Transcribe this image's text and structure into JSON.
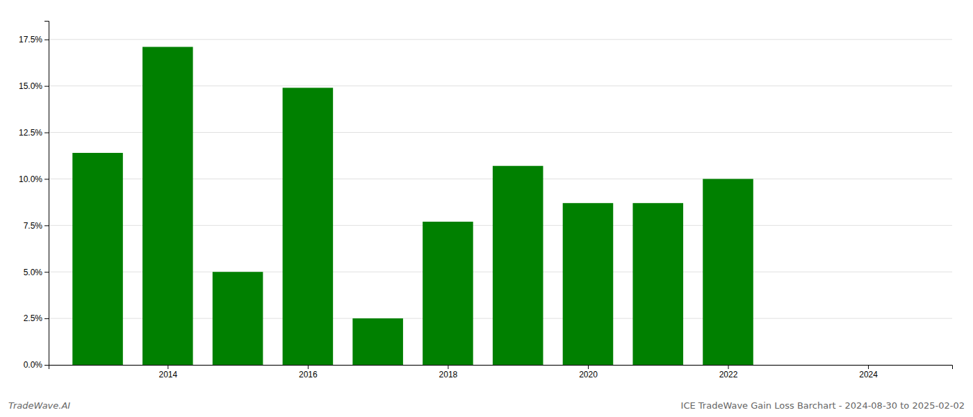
{
  "chart_data": {
    "type": "bar",
    "x": [
      2013,
      2014,
      2015,
      2016,
      2017,
      2018,
      2019,
      2020,
      2021,
      2022
    ],
    "values": [
      0.114,
      0.171,
      0.05,
      0.149,
      0.025,
      0.077,
      0.107,
      0.087,
      0.087,
      0.1
    ],
    "color": "#008000",
    "xlim": [
      2012.3,
      2025.2
    ],
    "xticks": [
      2014,
      2016,
      2018,
      2020,
      2022,
      2024
    ],
    "ylim": [
      0.0,
      0.185
    ],
    "yticks": [
      {
        "value": 0.0,
        "label": "0.0%"
      },
      {
        "value": 0.025,
        "label": "2.5%"
      },
      {
        "value": 0.05,
        "label": "5.0%"
      },
      {
        "value": 0.075,
        "label": "7.5%"
      },
      {
        "value": 0.1,
        "label": "10.0%"
      },
      {
        "value": 0.125,
        "label": "12.5%"
      },
      {
        "value": 0.15,
        "label": "15.0%"
      },
      {
        "value": 0.175,
        "label": "17.5%"
      }
    ],
    "grid": true,
    "annotations": [
      "TradeWave.AI",
      "ICE TradeWave Gain Loss Barchart - 2024-08-30 to 2025-02-02"
    ]
  }
}
